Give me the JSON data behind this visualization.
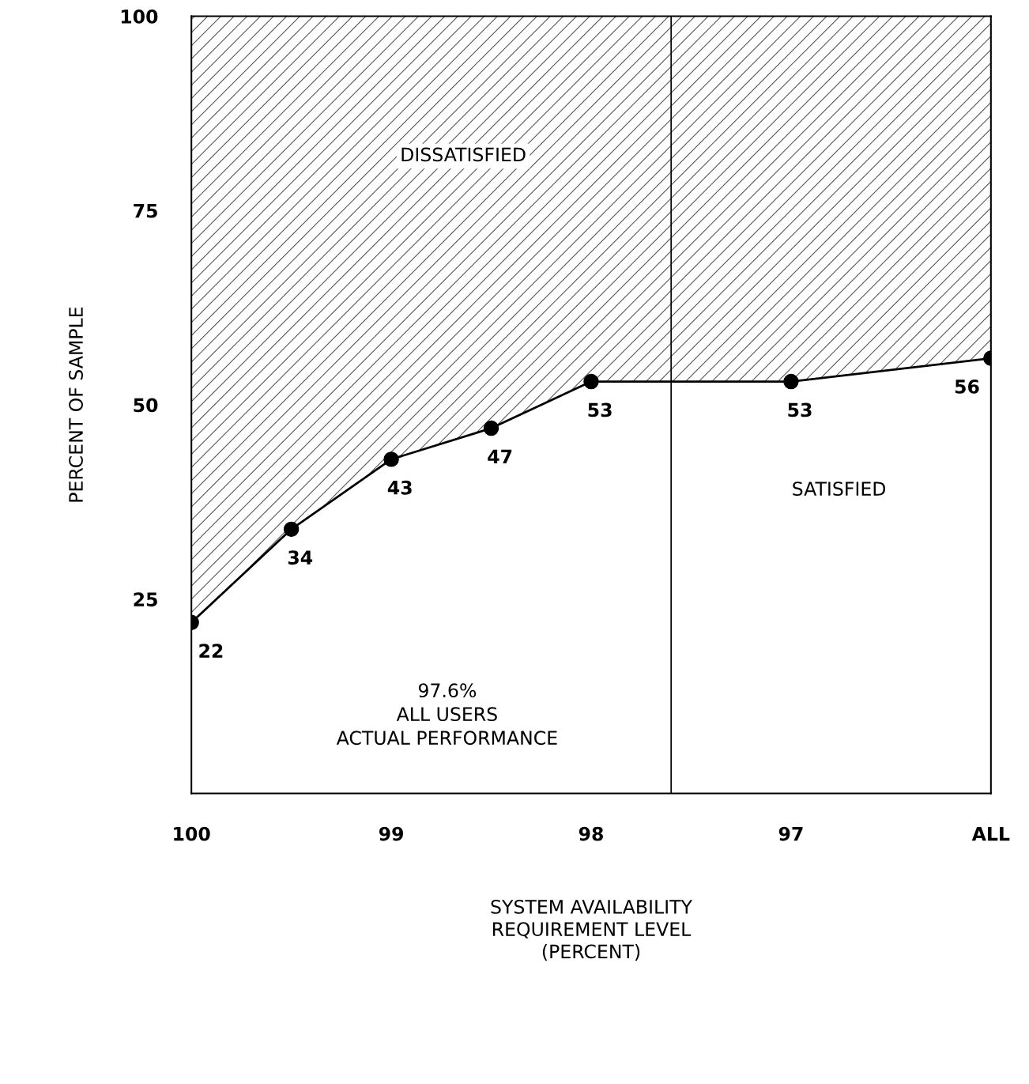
{
  "chart_data": {
    "type": "line",
    "xlabel": "SYSTEM AVAILABILITY\nREQUIREMENT LEVEL\n(PERCENT)",
    "ylabel": "PERCENT OF SAMPLE",
    "x": [
      100,
      99.5,
      99,
      98.5,
      98,
      97,
      96
    ],
    "series": [
      {
        "color": "#000000",
        "values": [
          22,
          34,
          43,
          47,
          53,
          53,
          56
        ],
        "lower": [
          22,
          34,
          43,
          47,
          53,
          53,
          56
        ],
        "upper": [
          100,
          100,
          100,
          100,
          100,
          100,
          100
        ]
      }
    ],
    "data_labels": true,
    "marker": "circle",
    "line_style": "solid",
    "grid": false,
    "xlim": [
      100,
      96
    ],
    "xticks": [
      100,
      99,
      98,
      97,
      {
        "value": 96,
        "label": "ALL"
      }
    ],
    "ylim": [
      0,
      100
    ],
    "yticks": [
      25,
      50,
      75,
      100
    ],
    "ref_lines": [
      {
        "axis": "x",
        "value": 97.6,
        "label": "97.6%\nALL USERS\nACTUAL PERFORMANCE",
        "color": "#000000"
      }
    ],
    "annotations": [
      "DISSATISFIED",
      "SATISFIED"
    ]
  }
}
